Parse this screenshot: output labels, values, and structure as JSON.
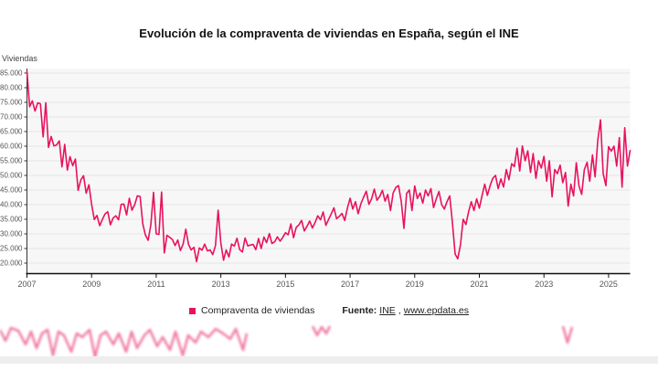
{
  "title": "Evolución de la compraventa de viviendas en España, según el INE",
  "y_axis_label": "Viviendas",
  "legend": {
    "series_label": "Compraventa de viviendas",
    "marker_color": "#e8125e"
  },
  "source": {
    "prefix": "Fuente:",
    "link_ine": "INE",
    "separator": ", ",
    "link_epdata": "www.epdata.es"
  },
  "chart_data": {
    "type": "line",
    "title": "Evolución de la compraventa de viviendas en España, según el INE",
    "xlabel": "",
    "ylabel": "Viviendas",
    "legend_position": "bottom",
    "grid": "horizontal",
    "line_color": "#e8125e",
    "plot_background": "#f7f7f7",
    "grid_color": "#e4e4e4",
    "ylim": [
      16562,
      86562
    ],
    "y_ticks": [
      85000,
      80000,
      75000,
      70000,
      65000,
      60000,
      55000,
      50000,
      45000,
      40000,
      35000,
      30000,
      25000,
      20000
    ],
    "y_tick_labels": [
      "85.000",
      "80.000",
      "75.000",
      "70.000",
      "65.000",
      "60.000",
      "55.000",
      "50.000",
      "45.000",
      "40.000",
      "35.000",
      "30.000",
      "25.000",
      "20.000"
    ],
    "x_tick_years": [
      2007,
      2009,
      2011,
      2013,
      2015,
      2017,
      2019,
      2021,
      2023,
      2025
    ],
    "x_tick_labels": [
      "2007",
      "2009",
      "2011",
      "2013",
      "2015",
      "2017",
      "2019",
      "2021",
      "2023",
      "2025"
    ],
    "series": [
      {
        "name": "Compraventa de viviendas",
        "color": "#e8125e",
        "frequency": "monthly",
        "x_start": "2007-01",
        "x_end": "2025-09",
        "values": [
          85600,
          73500,
          75500,
          72000,
          74800,
          74500,
          63200,
          74800,
          59600,
          63300,
          60100,
          60400,
          61800,
          52900,
          60600,
          51800,
          56400,
          53300,
          55600,
          44900,
          48400,
          49900,
          43900,
          46800,
          40200,
          34900,
          36300,
          32800,
          34900,
          36800,
          37600,
          33100,
          35400,
          36200,
          34800,
          40100,
          40200,
          36500,
          42200,
          38100,
          40000,
          43000,
          42800,
          33500,
          29600,
          27800,
          33000,
          44200,
          30000,
          29800,
          44300,
          23500,
          29500,
          28800,
          28100,
          26000,
          27900,
          24300,
          26500,
          31600,
          26400,
          24500,
          25400,
          20500,
          25200,
          24400,
          26500,
          24200,
          24500,
          22900,
          26000,
          38100,
          27000,
          21000,
          24500,
          22100,
          26500,
          25800,
          28500,
          24600,
          23800,
          28600,
          25900,
          26200,
          26400,
          24600,
          28400,
          25000,
          28900,
          27000,
          30100,
          26700,
          27300,
          29000,
          27500,
          28800,
          30400,
          29700,
          33400,
          28700,
          32200,
          33100,
          34600,
          31000,
          32600,
          34400,
          32000,
          33900,
          36200,
          34800,
          37500,
          32900,
          34900,
          36800,
          38900,
          35200,
          36000,
          37000,
          34600,
          38800,
          42200,
          38500,
          41000,
          36900,
          40300,
          42500,
          44600,
          40100,
          42000,
          45300,
          41500,
          42800,
          44900,
          41200,
          43500,
          38000,
          44000,
          45900,
          46500,
          41000,
          31900,
          43800,
          45000,
          38000,
          46400,
          42100,
          44000,
          40500,
          45000,
          43000,
          45500,
          39000,
          42000,
          44500,
          40000,
          38500,
          41000,
          43000,
          34000,
          23100,
          21500,
          26300,
          35000,
          33200,
          37500,
          41000,
          38000,
          42000,
          38800,
          43000,
          47000,
          43200,
          46500,
          49000,
          50000,
          45500,
          48800,
          46000,
          52000,
          48500,
          54000,
          53000,
          59300,
          51500,
          60100,
          55000,
          58400,
          51000,
          57500,
          49000,
          55000,
          52500,
          56500,
          48000,
          55000,
          42700,
          52000,
          50600,
          53500,
          47500,
          51000,
          39500,
          47000,
          43000,
          54300,
          46500,
          43500,
          52000,
          54500,
          48000,
          57000,
          49500,
          62000,
          69000,
          50600,
          46500,
          59800,
          58300,
          60000,
          53200,
          62900,
          46000,
          66300,
          53200,
          58500
        ]
      }
    ]
  }
}
